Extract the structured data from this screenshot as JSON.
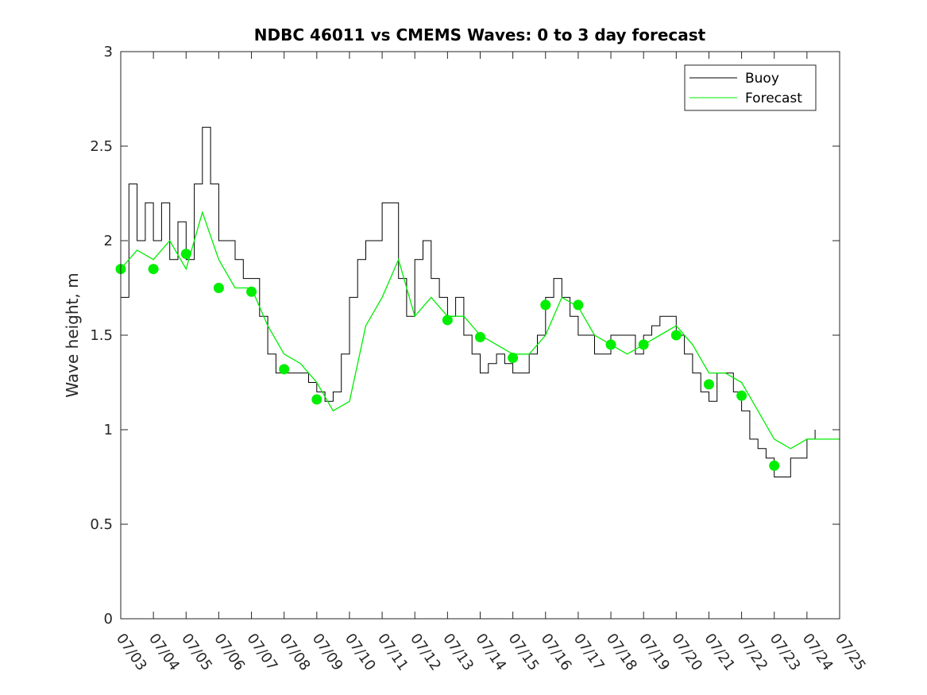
{
  "chart_data": {
    "type": "line",
    "title": "NDBC 46011 vs CMEMS Waves: 0 to 3 day forecast",
    "xlabel": "",
    "ylabel": "Wave height, m",
    "xlim": [
      "07/03",
      "07/25"
    ],
    "ylim": [
      0,
      3
    ],
    "y_ticks": [
      "0",
      "0.5",
      "1",
      "1.5",
      "2",
      "2.5",
      "3"
    ],
    "x_tick_labels": [
      "07/03",
      "07/04",
      "07/05",
      "07/06",
      "07/07",
      "07/08",
      "07/09",
      "07/10",
      "07/11",
      "07/12",
      "07/13",
      "07/14",
      "07/15",
      "07/16",
      "07/17",
      "07/18",
      "07/19",
      "07/20",
      "07/21",
      "07/22",
      "07/23",
      "07/24",
      "07/25"
    ],
    "legend": {
      "position": "top-right",
      "entries": [
        "Buoy",
        "Forecast"
      ]
    },
    "grid": false,
    "colors": {
      "buoy": "#000000",
      "forecast": "#00ee00"
    },
    "series": [
      {
        "name": "Buoy",
        "x": [
          "07/03 00:00",
          "07/03 06:00",
          "07/03 12:00",
          "07/03 18:00",
          "07/04 00:00",
          "07/04 06:00",
          "07/04 12:00",
          "07/04 18:00",
          "07/05 00:00",
          "07/05 06:00",
          "07/05 12:00",
          "07/05 18:00",
          "07/06 00:00",
          "07/06 06:00",
          "07/06 12:00",
          "07/06 18:00",
          "07/07 00:00",
          "07/07 06:00",
          "07/07 12:00",
          "07/07 18:00",
          "07/08 00:00",
          "07/08 06:00",
          "07/08 12:00",
          "07/08 18:00",
          "07/09 00:00",
          "07/09 06:00",
          "07/09 12:00",
          "07/09 18:00",
          "07/10 00:00",
          "07/10 06:00",
          "07/10 12:00",
          "07/10 18:00",
          "07/11 00:00",
          "07/11 06:00",
          "07/11 12:00",
          "07/11 18:00",
          "07/12 00:00",
          "07/12 06:00",
          "07/12 12:00",
          "07/12 18:00",
          "07/13 00:00",
          "07/13 06:00",
          "07/13 12:00",
          "07/13 18:00",
          "07/14 00:00",
          "07/14 06:00",
          "07/14 12:00",
          "07/14 18:00",
          "07/15 00:00",
          "07/15 06:00",
          "07/15 12:00",
          "07/15 18:00",
          "07/16 00:00",
          "07/16 06:00",
          "07/16 12:00",
          "07/16 18:00",
          "07/17 00:00",
          "07/17 06:00",
          "07/17 12:00",
          "07/17 18:00",
          "07/18 00:00",
          "07/18 06:00",
          "07/18 12:00",
          "07/18 18:00",
          "07/19 00:00",
          "07/19 06:00",
          "07/19 12:00",
          "07/19 18:00",
          "07/20 00:00",
          "07/20 06:00",
          "07/20 12:00",
          "07/20 18:00",
          "07/21 00:00",
          "07/21 06:00",
          "07/21 12:00",
          "07/21 18:00",
          "07/22 00:00",
          "07/22 06:00",
          "07/22 12:00",
          "07/22 18:00",
          "07/23 00:00",
          "07/23 06:00",
          "07/23 12:00",
          "07/23 18:00",
          "07/24 00:00",
          "07/24 06:00"
        ],
        "y": [
          1.7,
          2.3,
          2.0,
          2.2,
          2.0,
          2.2,
          1.9,
          2.1,
          1.9,
          2.3,
          2.6,
          2.3,
          2.0,
          2.0,
          1.9,
          1.8,
          1.8,
          1.6,
          1.4,
          1.3,
          1.3,
          1.3,
          1.3,
          1.25,
          1.2,
          1.15,
          1.2,
          1.4,
          1.7,
          1.9,
          2.0,
          2.0,
          2.2,
          2.2,
          1.8,
          1.6,
          1.9,
          2.0,
          1.8,
          1.7,
          1.6,
          1.7,
          1.5,
          1.4,
          1.3,
          1.35,
          1.4,
          1.35,
          1.3,
          1.3,
          1.4,
          1.5,
          1.7,
          1.8,
          1.7,
          1.6,
          1.5,
          1.5,
          1.4,
          1.4,
          1.5,
          1.5,
          1.5,
          1.4,
          1.5,
          1.55,
          1.6,
          1.6,
          1.5,
          1.4,
          1.3,
          1.2,
          1.15,
          1.3,
          1.3,
          1.2,
          1.1,
          0.95,
          0.9,
          0.85,
          0.75,
          0.75,
          0.85,
          0.85,
          0.95,
          1.0
        ]
      },
      {
        "name": "Forecast",
        "x": [
          "07/03 00:00",
          "07/03 12:00",
          "07/04 00:00",
          "07/04 12:00",
          "07/05 00:00",
          "07/05 12:00",
          "07/06 00:00",
          "07/06 12:00",
          "07/07 00:00",
          "07/07 12:00",
          "07/08 00:00",
          "07/08 12:00",
          "07/09 00:00",
          "07/09 12:00",
          "07/10 00:00",
          "07/10 12:00",
          "07/11 00:00",
          "07/11 12:00",
          "07/12 00:00",
          "07/12 12:00",
          "07/13 00:00",
          "07/13 12:00",
          "07/14 00:00",
          "07/14 12:00",
          "07/15 00:00",
          "07/15 12:00",
          "07/16 00:00",
          "07/16 12:00",
          "07/17 00:00",
          "07/17 12:00",
          "07/18 00:00",
          "07/18 12:00",
          "07/19 00:00",
          "07/19 12:00",
          "07/20 00:00",
          "07/20 12:00",
          "07/21 00:00",
          "07/21 12:00",
          "07/22 00:00",
          "07/22 12:00",
          "07/23 00:00",
          "07/23 12:00",
          "07/24 00:00",
          "07/24 12:00",
          "07/25 00:00"
        ],
        "y": [
          1.85,
          1.95,
          1.9,
          2.0,
          1.85,
          2.15,
          1.9,
          1.75,
          1.75,
          1.55,
          1.4,
          1.35,
          1.25,
          1.1,
          1.15,
          1.55,
          1.7,
          1.9,
          1.6,
          1.7,
          1.6,
          1.6,
          1.5,
          1.45,
          1.4,
          1.4,
          1.5,
          1.7,
          1.65,
          1.5,
          1.45,
          1.4,
          1.45,
          1.5,
          1.55,
          1.45,
          1.3,
          1.3,
          1.25,
          1.1,
          0.95,
          0.9,
          0.95,
          0.95,
          0.95
        ]
      }
    ],
    "forecast_start_markers": {
      "x": [
        "07/03",
        "07/04",
        "07/05",
        "07/06",
        "07/07",
        "07/08",
        "07/09",
        "07/13",
        "07/14",
        "07/15",
        "07/16",
        "07/17",
        "07/18",
        "07/19",
        "07/20",
        "07/21",
        "07/22",
        "07/23"
      ],
      "y": [
        1.85,
        1.85,
        1.93,
        1.75,
        1.73,
        1.32,
        1.16,
        1.58,
        1.49,
        1.38,
        1.66,
        1.66,
        1.45,
        1.45,
        1.5,
        1.24,
        1.18,
        0.81
      ]
    }
  }
}
